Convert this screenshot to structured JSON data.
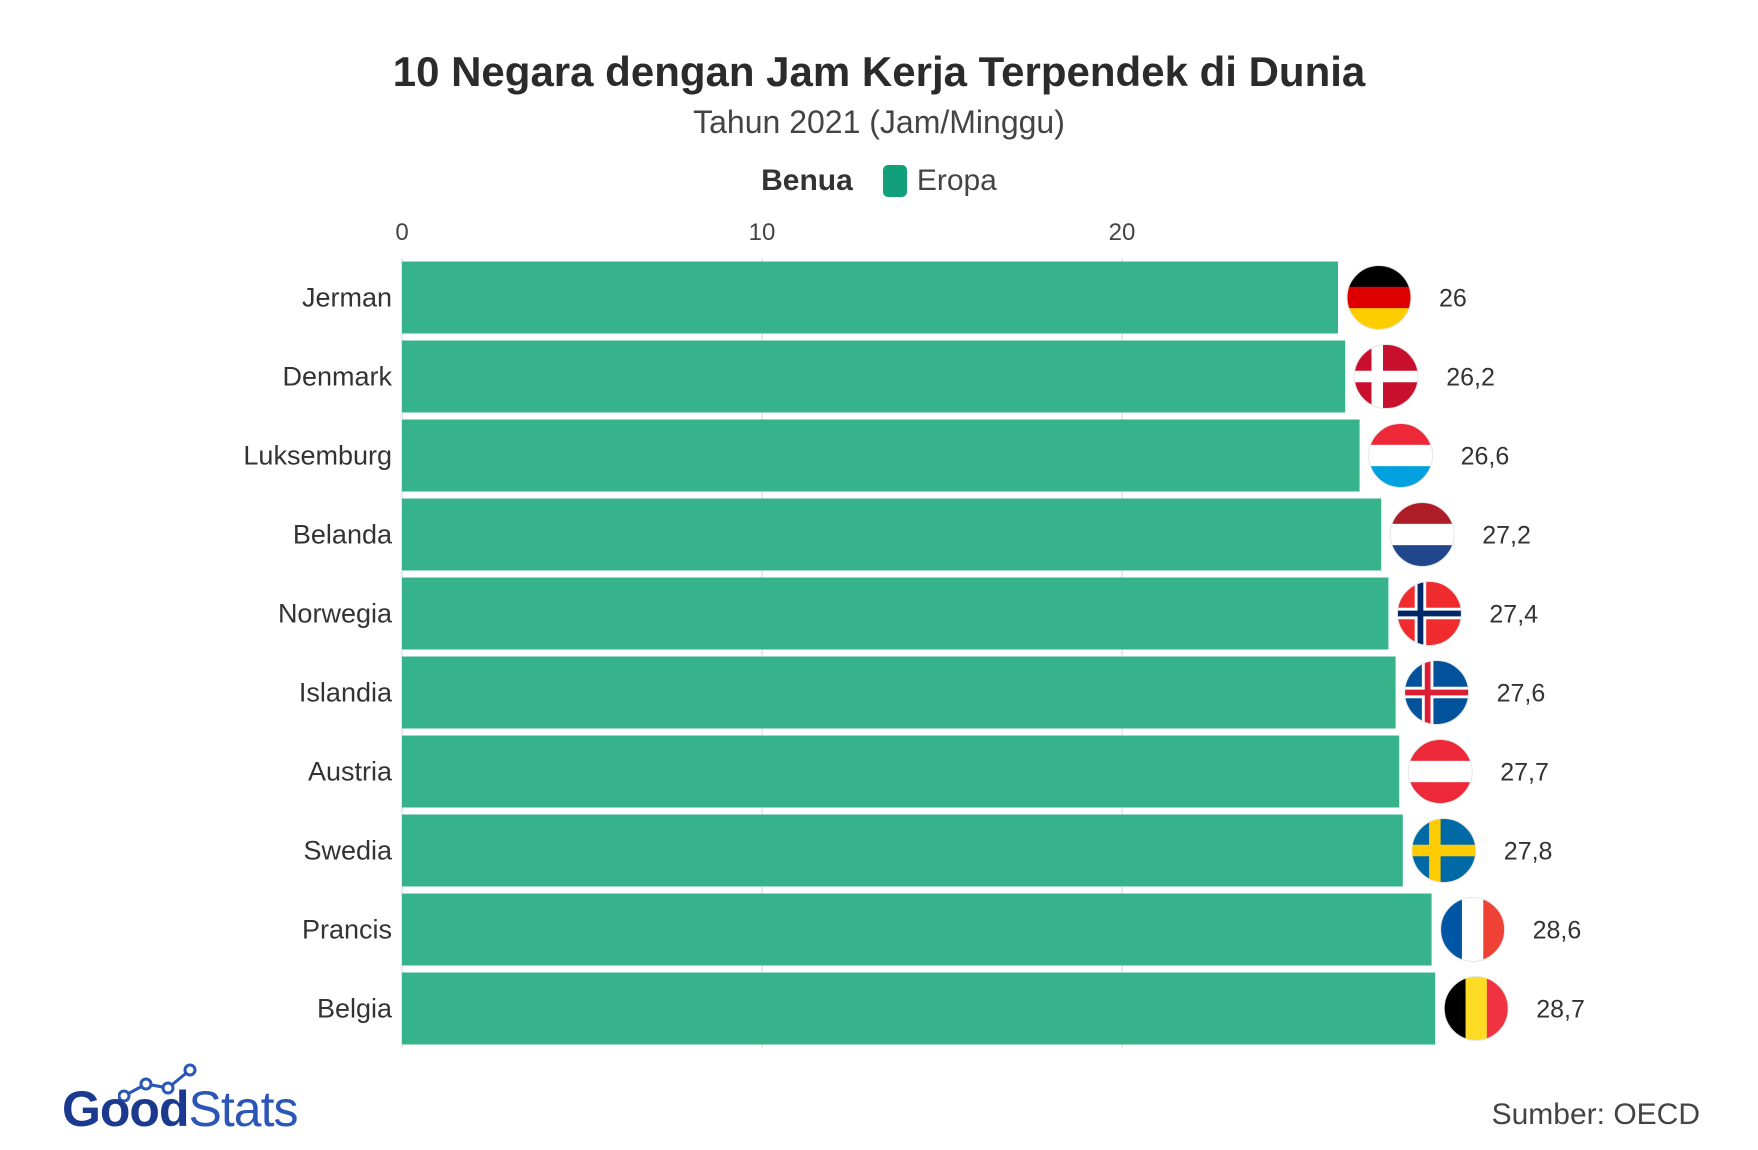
{
  "title": "10 Negara dengan Jam Kerja Terpendek di Dunia",
  "subtitle": "Tahun 2021 (Jam/Minggu)",
  "legend": {
    "title": "Benua",
    "items": [
      {
        "label": "Eropa",
        "color": "#12a07a"
      }
    ]
  },
  "footer": {
    "logo_good": "Good",
    "logo_stats": "Stats",
    "source": "Sumber: OECD"
  },
  "colors": {
    "bar": "#36b38b",
    "grid": "#e3e3e3"
  },
  "chart_data": {
    "type": "bar",
    "orientation": "horizontal",
    "title": "10 Negara dengan Jam Kerja Terpendek di Dunia",
    "subtitle": "Tahun 2021 (Jam/Minggu)",
    "categories": [
      "Jerman",
      "Denmark",
      "Luksemburg",
      "Belanda",
      "Norwegia",
      "Islandia",
      "Austria",
      "Swedia",
      "Prancis",
      "Belgia"
    ],
    "values": [
      26,
      26.2,
      26.6,
      27.2,
      27.4,
      27.6,
      27.7,
      27.8,
      28.6,
      28.7
    ],
    "value_labels": [
      "26",
      "26,2",
      "26,6",
      "27,2",
      "27,4",
      "27,6",
      "27,7",
      "27,8",
      "28,6",
      "28,7"
    ],
    "series": [
      {
        "name": "Eropa",
        "values": [
          26,
          26.2,
          26.6,
          27.2,
          27.4,
          27.6,
          27.7,
          27.8,
          28.6,
          28.7
        ]
      }
    ],
    "flag_icons": [
      "germany-flag-icon",
      "denmark-flag-icon",
      "luxembourg-flag-icon",
      "netherlands-flag-icon",
      "norway-flag-icon",
      "iceland-flag-icon",
      "austria-flag-icon",
      "sweden-flag-icon",
      "france-flag-icon",
      "belgium-flag-icon"
    ],
    "x_ticks": [
      "0",
      "10",
      "20"
    ],
    "xlim": [
      0,
      35
    ],
    "grid": true,
    "legend_position": "top-center",
    "xlabel": "",
    "ylabel": ""
  }
}
